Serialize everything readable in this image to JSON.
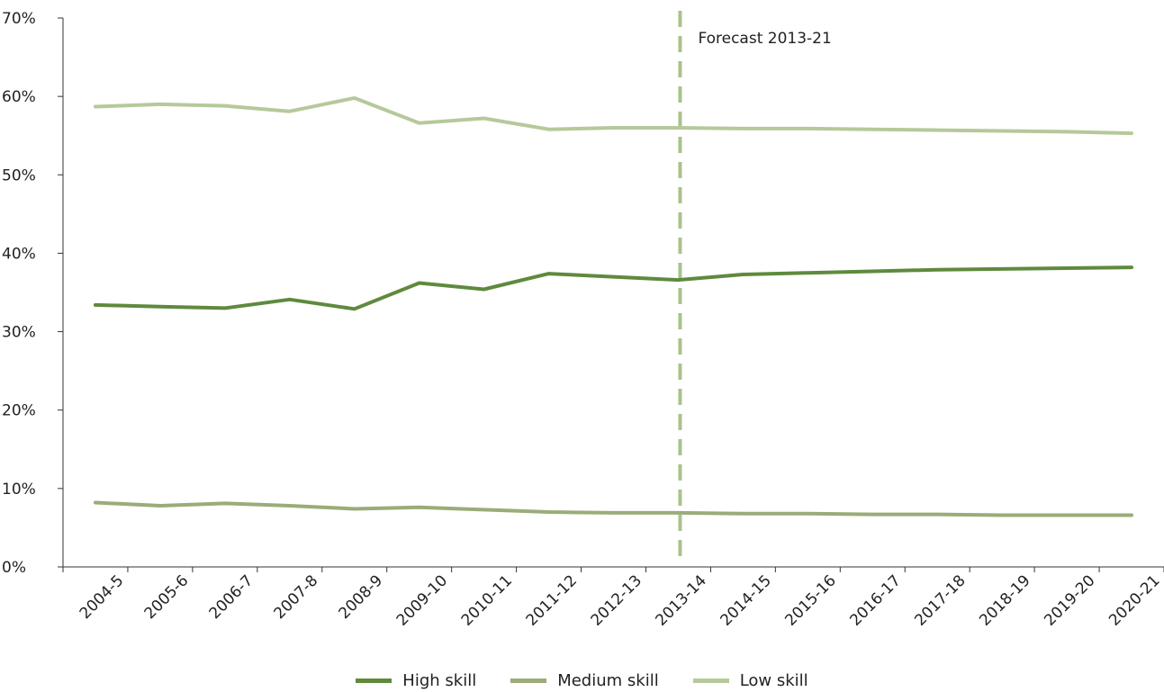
{
  "chart_data": {
    "type": "line",
    "categories": [
      "2004-5",
      "2005-6",
      "2006-7",
      "2007-8",
      "2008-9",
      "2009-10",
      "2010-11",
      "2011-12",
      "2012-13",
      "2013-14",
      "2014-15",
      "2015-16",
      "2016-17",
      "2017-18",
      "2018-19",
      "2019-20",
      "2020-21"
    ],
    "series": [
      {
        "name": "High skill",
        "color": "#5e8a3d",
        "values": [
          33.4,
          33.2,
          33.0,
          34.1,
          32.9,
          36.2,
          35.4,
          37.4,
          37.0,
          36.6,
          37.3,
          37.5,
          37.7,
          37.9,
          38.0,
          38.1,
          38.2
        ]
      },
      {
        "name": "Medium skill",
        "color": "#9aac78",
        "values": [
          8.2,
          7.8,
          8.1,
          7.8,
          7.4,
          7.6,
          7.3,
          7.0,
          6.9,
          6.9,
          6.8,
          6.8,
          6.7,
          6.7,
          6.6,
          6.6,
          6.6
        ]
      },
      {
        "name": "Low skill",
        "color": "#b5c99a",
        "values": [
          58.7,
          59.0,
          58.8,
          58.1,
          59.8,
          56.6,
          57.2,
          55.8,
          56.0,
          56.0,
          55.9,
          55.9,
          55.8,
          55.7,
          55.6,
          55.5,
          55.3
        ]
      }
    ],
    "ylim": [
      0,
      70
    ],
    "yticks": [
      0,
      10,
      20,
      30,
      40,
      50,
      60,
      70
    ],
    "ytick_labels": [
      "0%",
      "10%",
      "20%",
      "30%",
      "40%",
      "50%",
      "60%",
      "70%"
    ],
    "grid": false,
    "legend_position": "bottom-center",
    "annotation": {
      "text": "Forecast 2013-21",
      "at_category": "2013-14",
      "style": "dashed-vertical-line",
      "color": "#a9c28b"
    }
  }
}
